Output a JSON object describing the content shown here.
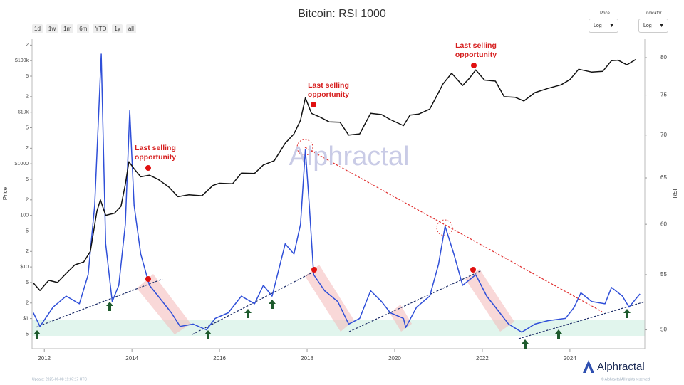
{
  "title": "Bitcoin: RSI 1000",
  "range_buttons": [
    "1d",
    "1w",
    "1m",
    "6m",
    "YTD",
    "1y",
    "all"
  ],
  "controls": [
    {
      "label": "Price",
      "value": "Log"
    },
    {
      "label": "Indicator",
      "value": "Log"
    }
  ],
  "watermark": "Alphractal",
  "logo": "Alphractal",
  "footer_left": "Update: 2025-06-08 19:07:17 UTC",
  "footer_right": "© Alphractal All rights reserved",
  "chart_data": {
    "type": "line",
    "y_label": "Price",
    "y2_label": "RSI",
    "annotations": [
      "Last selling opportunity",
      "Last selling opportunity",
      "Last selling opportunity"
    ],
    "xlim": [
      2011.72,
      2025.71
    ],
    "xticks": [
      2012,
      2014,
      2016,
      2018,
      2020,
      2022,
      2024
    ],
    "ylog": true,
    "ylim": [
      0.26,
      261000
    ],
    "yticks": [
      {
        "value": 0.5,
        "label": "5"
      },
      {
        "value": 1,
        "label": "$1"
      },
      {
        "value": 2,
        "label": "2"
      },
      {
        "value": 5,
        "label": "5"
      },
      {
        "value": 10,
        "label": "$10"
      },
      {
        "value": 20,
        "label": "2"
      },
      {
        "value": 50,
        "label": "5"
      },
      100,
      {
        "value": 200,
        "label": "2"
      },
      {
        "value": 500,
        "label": "5"
      },
      {
        "value": 1000,
        "label": "$1000"
      },
      {
        "value": 2000,
        "label": "2"
      },
      {
        "value": 5000,
        "label": "5"
      },
      {
        "value": 10000,
        "label": "$10k"
      },
      {
        "value": 20000,
        "label": "2"
      },
      {
        "value": 50000,
        "label": "5"
      },
      {
        "value": 100000,
        "label": "$100k"
      },
      {
        "value": 200000,
        "label": "2"
      }
    ],
    "y2log": true,
    "y2lim": [
      48.4,
      82.6
    ],
    "y2ticks": [
      50,
      55,
      60,
      65,
      70,
      75,
      80
    ],
    "series": [
      {
        "name": "Price",
        "color": "#111111",
        "axis": "y",
        "x": [
          2011.75,
          2011.9,
          2012.1,
          2012.3,
          2012.5,
          2012.7,
          2012.9,
          2013.05,
          2013.2,
          2013.28,
          2013.4,
          2013.6,
          2013.75,
          2013.85,
          2013.93,
          2014.05,
          2014.2,
          2014.4,
          2014.6,
          2014.85,
          2015.05,
          2015.3,
          2015.6,
          2015.85,
          2016.0,
          2016.3,
          2016.5,
          2016.8,
          2017.0,
          2017.25,
          2017.5,
          2017.7,
          2017.85,
          2017.96,
          2018.1,
          2018.3,
          2018.5,
          2018.75,
          2018.95,
          2019.2,
          2019.45,
          2019.7,
          2019.9,
          2020.2,
          2020.35,
          2020.55,
          2020.8,
          2020.95,
          2021.1,
          2021.3,
          2021.55,
          2021.7,
          2021.85,
          2022.05,
          2022.3,
          2022.5,
          2022.75,
          2022.95,
          2023.2,
          2023.5,
          2023.8,
          2024.0,
          2024.2,
          2024.5,
          2024.75,
          2024.95,
          2025.1,
          2025.3,
          2025.5
        ],
        "values": [
          4.9,
          3.5,
          5.5,
          5,
          7.5,
          11,
          12.5,
          20,
          120,
          200,
          100,
          110,
          150,
          400,
          1100,
          800,
          560,
          600,
          500,
          350,
          230,
          250,
          240,
          380,
          420,
          410,
          660,
          650,
          950,
          1150,
          2500,
          3800,
          7000,
          19000,
          9500,
          8000,
          6500,
          6400,
          3600,
          3800,
          9500,
          9000,
          7200,
          5500,
          8800,
          9200,
          11500,
          20000,
          35000,
          57000,
          33000,
          45000,
          66000,
          42000,
          40000,
          20000,
          19500,
          16500,
          24000,
          29000,
          34000,
          43000,
          68000,
          60000,
          62000,
          100000,
          102000,
          83000,
          105000
        ]
      },
      {
        "name": "RSI",
        "color": "#2f4fd8",
        "axis": "y2",
        "x": [
          2011.75,
          2011.9,
          2012.2,
          2012.5,
          2012.8,
          2013.0,
          2013.15,
          2013.3,
          2013.4,
          2013.55,
          2013.7,
          2013.85,
          2013.95,
          2014.05,
          2014.2,
          2014.4,
          2014.6,
          2014.9,
          2015.1,
          2015.4,
          2015.7,
          2015.9,
          2016.2,
          2016.5,
          2016.8,
          2017.0,
          2017.2,
          2017.5,
          2017.7,
          2017.85,
          2017.96,
          2018.05,
          2018.15,
          2018.4,
          2018.7,
          2018.95,
          2019.2,
          2019.45,
          2019.7,
          2019.9,
          2020.2,
          2020.25,
          2020.5,
          2020.8,
          2021.0,
          2021.15,
          2021.35,
          2021.55,
          2021.85,
          2022.1,
          2022.4,
          2022.6,
          2022.9,
          2023.2,
          2023.5,
          2023.9,
          2024.1,
          2024.25,
          2024.5,
          2024.8,
          2024.95,
          2025.2,
          2025.35,
          2025.6
        ],
        "values": [
          51.5,
          50.3,
          52,
          53,
          52.3,
          55,
          62,
          80.5,
          58,
          52.5,
          54,
          60,
          73,
          62,
          57,
          54,
          53,
          51.5,
          50.3,
          50.5,
          50,
          51,
          51.5,
          53,
          52.3,
          54,
          53,
          58,
          57,
          60,
          68.3,
          62,
          55,
          53.5,
          52.5,
          50.5,
          51,
          53.5,
          52.5,
          51.5,
          51,
          50.2,
          52,
          53,
          56,
          59.8,
          57,
          54,
          55,
          53,
          51.5,
          50.5,
          49.8,
          50.5,
          50.8,
          51,
          52,
          53.3,
          52.5,
          52.3,
          53.8,
          53,
          52,
          53.2
        ]
      }
    ]
  }
}
